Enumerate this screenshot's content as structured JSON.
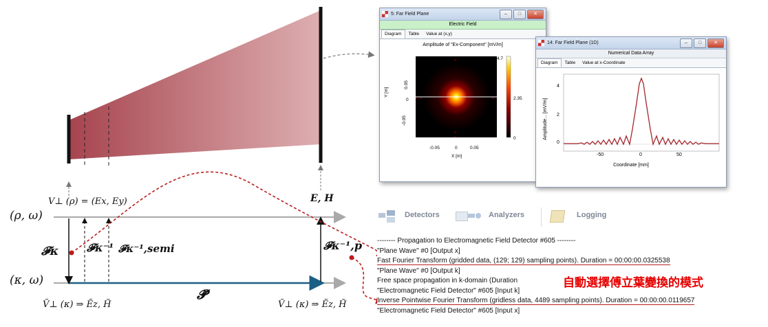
{
  "diagram": {
    "lbl_v_perp": "V⊥ (ρ) = (Ex, Ey)",
    "lbl_eh": "E, H",
    "lbl_rho_omega": "(ρ, ω)",
    "lbl_kappa_omega": "(κ, ω)",
    "lbl_f_kappa": "𝓕κ",
    "lbl_f_kappa_inv": "𝓕κ⁻¹",
    "lbl_f_kappa_semi": "𝓕κ⁻¹,semi",
    "lbl_f_kappa_p": "𝓕κ⁻¹,p",
    "lbl_p_tilde": "𝓟̃",
    "lbl_bottom_left": "Ṽ⊥ (κ) ⇒ Ẽz, H̃",
    "lbl_bottom_right": "Ṽ⊥ (κ) ⇒ Ẽz, H̃"
  },
  "window_2d": {
    "title": "5: Far Field Plane",
    "header_bar": "Electric Field",
    "tabs": [
      "Diagram",
      "Table",
      "Value at (x,y)"
    ],
    "plot_title": "Amplitude of \"Ex-Component\"  [mV/m]",
    "ylabel": "Y [m]",
    "xlabel": "X [m]",
    "xticks": [
      "-0.05",
      "0",
      "0.05"
    ],
    "yticks": [
      "0.05",
      "0",
      "-0.05"
    ],
    "colorbar_ticks": [
      "4.7",
      "2.35",
      "0"
    ]
  },
  "window_1d": {
    "title": "14: Far Field Plane (1D)",
    "header_bar": "Numerical Data Array",
    "tabs": [
      "Diagram",
      "Table",
      "Value at x-Coordinate"
    ],
    "ylabel": "Amplitude...  [mV/m]",
    "xlabel": "Coordinate [mm]",
    "xticks": [
      "-50",
      "0",
      "50"
    ],
    "yticks": [
      "4",
      "2",
      "0"
    ]
  },
  "toolbar": {
    "detectors": "Detectors",
    "analyzers": "Analyzers",
    "logging": "Logging"
  },
  "log_lines": [
    "-------- Propagation to Electromagnetic Field Detector #605 --------",
    "\"Plane Wave\" #0 [Output x]",
    "  Fast Fourier Transform (gridded data, (129; 129) sampling points). Duration = 00:00:00.0325538",
    "\"Plane Wave\" #0 [Output k]",
    "  Free space propagation in k-domain (Duration",
    "\"Electromagnetic Field Detector\" #605 [Input k]",
    "  Inverse Pointwise Fourier Transform (gridless data, 4489 sampling points). Duration = 00:00:00.0119657",
    "\"Electromagnetic Field Detector\" #605 [Input x]"
  ],
  "annotation_zh": "自動選擇傅立葉變換的模式",
  "colors": {
    "beam": "#c07a7e",
    "dashed_red": "#b81d1d",
    "propagation_arrow": "#1b5f84",
    "axis_gray": "#a9a9a9",
    "plot_line": "#a3252b"
  }
}
